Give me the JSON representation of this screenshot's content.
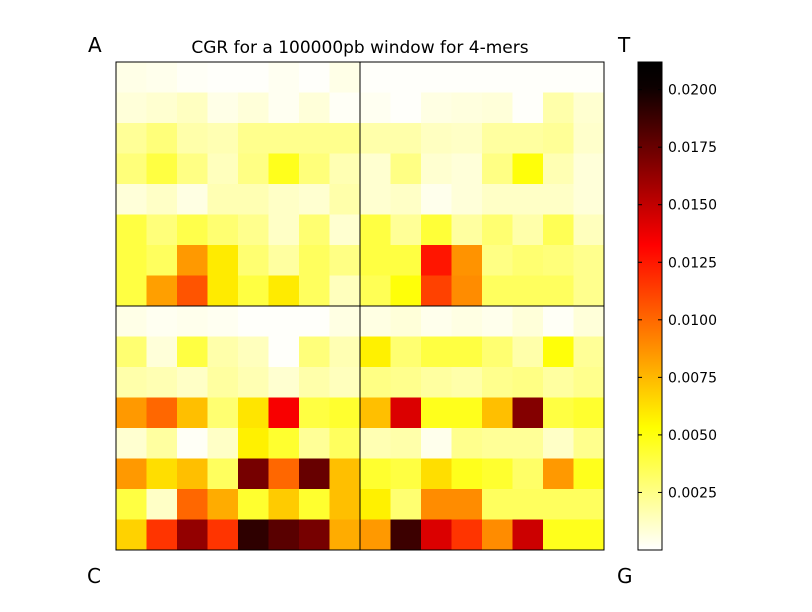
{
  "chart_data": {
    "type": "heatmap",
    "title": "CGR for a 100000pb window for 4-mers",
    "corner_labels": {
      "top_left": "A",
      "top_right": "T",
      "bottom_left": "C",
      "bottom_right": "G"
    },
    "grid_size": 16,
    "values": [
      [
        0.0005,
        0.0004,
        0.0002,
        0.0001,
        0.0001,
        0.0003,
        0.0001,
        0.0005,
        0.0001,
        0.0001,
        0.0001,
        0.0001,
        0.0001,
        0.0001,
        0.0001,
        0.0001
      ],
      [
        0.0008,
        0.001,
        0.0013,
        0.0005,
        0.0008,
        0.0003,
        0.0008,
        0.0002,
        0.0003,
        0.0001,
        0.0006,
        0.0007,
        0.0008,
        0.0001,
        0.0018,
        0.001
      ],
      [
        0.0022,
        0.0028,
        0.0018,
        0.0016,
        0.0024,
        0.0024,
        0.0024,
        0.0024,
        0.0018,
        0.0018,
        0.0013,
        0.0012,
        0.002,
        0.002,
        0.0022,
        0.0011
      ],
      [
        0.0028,
        0.004,
        0.0026,
        0.0014,
        0.0026,
        0.0048,
        0.0028,
        0.0016,
        0.001,
        0.0026,
        0.001,
        0.0008,
        0.0026,
        0.0052,
        0.0016,
        0.0008
      ],
      [
        0.0008,
        0.0012,
        0.0006,
        0.0016,
        0.0016,
        0.0012,
        0.001,
        0.0018,
        0.001,
        0.0012,
        0.0004,
        0.0008,
        0.0012,
        0.0012,
        0.0012,
        0.0008
      ],
      [
        0.004,
        0.0028,
        0.0038,
        0.003,
        0.0024,
        0.0012,
        0.003,
        0.001,
        0.004,
        0.0022,
        0.0042,
        0.002,
        0.003,
        0.0018,
        0.0036,
        0.0014
      ],
      [
        0.004,
        0.0034,
        0.0086,
        0.006,
        0.003,
        0.002,
        0.0034,
        0.0026,
        0.004,
        0.004,
        0.0128,
        0.0088,
        0.0026,
        0.003,
        0.0028,
        0.0024
      ],
      [
        0.004,
        0.0084,
        0.0108,
        0.006,
        0.004,
        0.006,
        0.0034,
        0.0014,
        0.0036,
        0.0052,
        0.0114,
        0.009,
        0.0034,
        0.0034,
        0.0034,
        0.0024
      ],
      [
        0.0005,
        0.0003,
        0.0004,
        0.0003,
        0.0001,
        0.0001,
        0.0001,
        0.0006,
        0.0006,
        0.0008,
        0.0004,
        0.0006,
        0.0004,
        0.0008,
        0.0002,
        0.0008
      ],
      [
        0.003,
        0.0008,
        0.004,
        0.0018,
        0.0014,
        0.0001,
        0.0028,
        0.0016,
        0.0058,
        0.003,
        0.004,
        0.004,
        0.003,
        0.0018,
        0.0052,
        0.0022
      ],
      [
        0.0018,
        0.0016,
        0.0012,
        0.002,
        0.0016,
        0.001,
        0.0018,
        0.0014,
        0.0026,
        0.0024,
        0.002,
        0.0018,
        0.0024,
        0.0026,
        0.002,
        0.0024
      ],
      [
        0.0086,
        0.0102,
        0.0074,
        0.003,
        0.0062,
        0.0135,
        0.004,
        0.0044,
        0.0074,
        0.0145,
        0.0048,
        0.0048,
        0.0074,
        0.0175,
        0.004,
        0.0044
      ],
      [
        0.001,
        0.002,
        0.0002,
        0.0012,
        0.0058,
        0.0044,
        0.0022,
        0.0034,
        0.0016,
        0.0018,
        0.0004,
        0.0024,
        0.0022,
        0.0022,
        0.0012,
        0.0024
      ],
      [
        0.0086,
        0.0064,
        0.0074,
        0.0034,
        0.018,
        0.0102,
        0.0185,
        0.0074,
        0.0044,
        0.004,
        0.0064,
        0.0048,
        0.0044,
        0.0032,
        0.0086,
        0.0048
      ],
      [
        0.004,
        0.0012,
        0.0102,
        0.008,
        0.0044,
        0.007,
        0.0044,
        0.0074,
        0.0058,
        0.003,
        0.009,
        0.009,
        0.0034,
        0.0034,
        0.0034,
        0.0034
      ],
      [
        0.0068,
        0.0118,
        0.017,
        0.0118,
        0.0205,
        0.019,
        0.018,
        0.008,
        0.0086,
        0.02,
        0.0145,
        0.0118,
        0.009,
        0.015,
        0.0048,
        0.0048
      ]
    ],
    "colorbar": {
      "cmap": "hot_r",
      "vmin": 0.0,
      "vmax": 0.0212,
      "ticks": [
        0.0025,
        0.005,
        0.0075,
        0.01,
        0.0125,
        0.015,
        0.0175,
        0.02
      ],
      "tick_labels": [
        "0.0025",
        "0.0050",
        "0.0075",
        "0.0100",
        "0.0125",
        "0.0150",
        "0.0175",
        "0.0200"
      ]
    }
  }
}
